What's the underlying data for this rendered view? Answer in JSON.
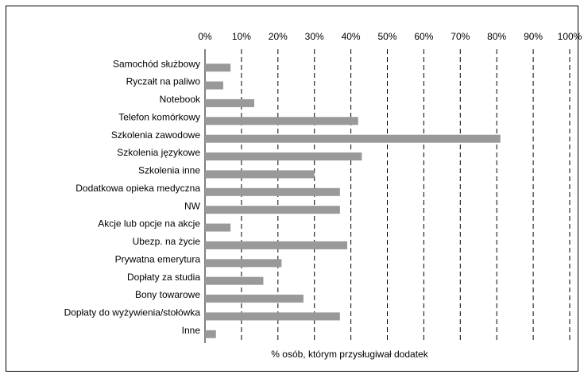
{
  "chart_data": {
    "type": "bar",
    "orientation": "horizontal",
    "x_label": "% osób, którym przysługiwał dodatek",
    "categories": [
      "Samochód służbowy",
      "Ryczałt na paliwo",
      "Notebook",
      "Telefon komórkowy",
      "Szkolenia zawodowe",
      "Szkolenia językowe",
      "Szkolenia inne",
      "Dodatkowa opieka medyczna",
      "NW",
      "Akcje lub opcje na akcje",
      "Ubezp. na życie",
      "Prywatna emerytura",
      "Dopłaty za studia",
      "Bony towarowe",
      "Dopłaty do wyżywienia/stołówka",
      "Inne"
    ],
    "values": [
      7,
      5,
      13.5,
      42,
      81,
      43,
      30,
      37,
      37,
      7,
      39,
      21,
      16,
      27,
      37,
      3
    ],
    "color": "#999999",
    "xlim": [
      0,
      100
    ],
    "xticks": [
      {
        "value": 0,
        "label": "0%"
      },
      {
        "value": 10,
        "label": "10%"
      },
      {
        "value": 20,
        "label": "20%"
      },
      {
        "value": 30,
        "label": "30%"
      },
      {
        "value": 40,
        "label": "40%"
      },
      {
        "value": 50,
        "label": "50%"
      },
      {
        "value": 60,
        "label": "60%"
      },
      {
        "value": 70,
        "label": "70%"
      },
      {
        "value": 80,
        "label": "80%"
      },
      {
        "value": 90,
        "label": "90%"
      },
      {
        "value": 100,
        "label": "100%"
      }
    ],
    "grid": true
  }
}
